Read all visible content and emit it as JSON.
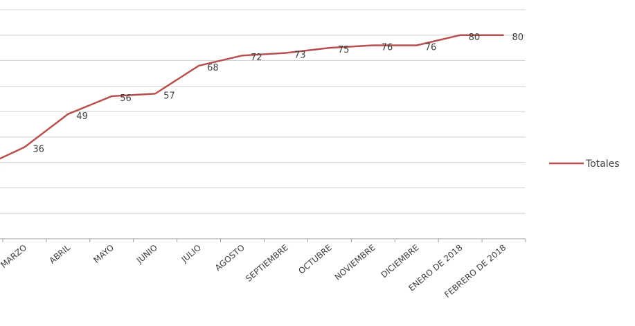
{
  "chart_data": {
    "type": "line",
    "categories": [
      null,
      "MARZO",
      "ABRIL",
      "MAYO",
      "JUNIO",
      "JULIO",
      "AGOSTO",
      "SEPTIEMBRE",
      "OCTUBRE",
      "NOVIEMBRE",
      "DICIEMBRE",
      "ENERO DE 2018",
      "FEBRERO DE 2018"
    ],
    "series": [
      {
        "name": "Totales",
        "color": "#b5504f",
        "values": [
          28,
          36,
          49,
          56,
          57,
          68,
          72,
          73,
          75,
          76,
          76,
          80,
          80
        ]
      }
    ],
    "ylim": [
      0,
      90
    ],
    "yticks": [
      0,
      10,
      20,
      30,
      40,
      50,
      60,
      70,
      80,
      90
    ],
    "grid": true,
    "legend": "right",
    "data_labels": true
  }
}
